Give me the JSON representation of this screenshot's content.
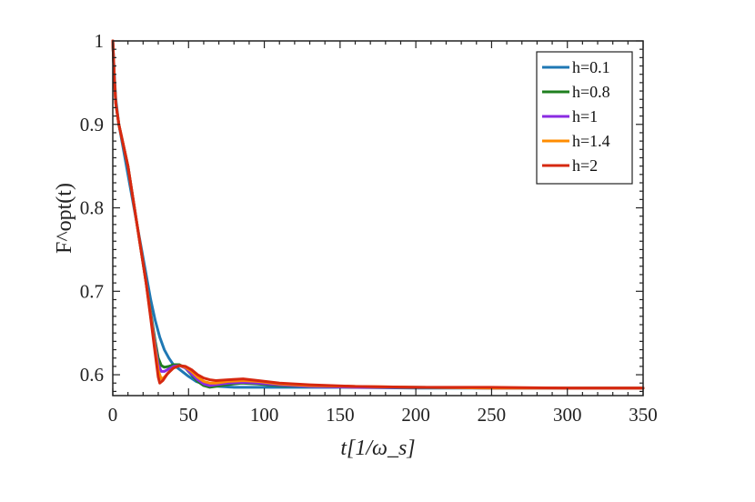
{
  "chart_data": {
    "type": "line",
    "xlabel": "t[1/ω_s]",
    "ylabel": "F^opt(t)",
    "xlim": [
      0,
      350
    ],
    "ylim": [
      0.575,
      1.0
    ],
    "xticks": [
      0,
      50,
      100,
      150,
      200,
      250,
      300,
      350
    ],
    "yticks": [
      0.6,
      0.7,
      0.8,
      0.9,
      1
    ],
    "ytick_labels": [
      "0.6",
      "0.7",
      "0.8",
      "0.9",
      "1"
    ],
    "grid": false,
    "legend_position": "top-right",
    "series": [
      {
        "name": "h=0.1",
        "color": "#1f78b4",
        "points": [
          [
            0,
            1.0
          ],
          [
            1,
            0.96
          ],
          [
            2,
            0.93
          ],
          [
            4,
            0.9
          ],
          [
            7,
            0.87
          ],
          [
            10,
            0.84
          ],
          [
            13,
            0.81
          ],
          [
            16,
            0.78
          ],
          [
            19,
            0.75
          ],
          [
            22,
            0.72
          ],
          [
            25,
            0.69
          ],
          [
            28,
            0.665
          ],
          [
            31,
            0.645
          ],
          [
            34,
            0.63
          ],
          [
            37,
            0.62
          ],
          [
            40,
            0.612
          ],
          [
            45,
            0.605
          ],
          [
            50,
            0.598
          ],
          [
            55,
            0.592
          ],
          [
            60,
            0.589
          ],
          [
            65,
            0.587
          ],
          [
            70,
            0.586
          ],
          [
            80,
            0.585
          ],
          [
            90,
            0.585
          ],
          [
            100,
            0.585
          ],
          [
            150,
            0.585
          ],
          [
            200,
            0.584
          ],
          [
            250,
            0.584
          ],
          [
            300,
            0.584
          ],
          [
            350,
            0.584
          ]
        ]
      },
      {
        "name": "h=0.8",
        "color": "#1f7f1f",
        "points": [
          [
            0,
            1.0
          ],
          [
            1,
            0.955
          ],
          [
            2,
            0.925
          ],
          [
            4,
            0.9
          ],
          [
            7,
            0.875
          ],
          [
            10,
            0.85
          ],
          [
            13,
            0.815
          ],
          [
            16,
            0.78
          ],
          [
            19,
            0.745
          ],
          [
            22,
            0.71
          ],
          [
            25,
            0.675
          ],
          [
            28,
            0.64
          ],
          [
            30,
            0.62
          ],
          [
            32,
            0.611
          ],
          [
            34,
            0.609
          ],
          [
            37,
            0.61
          ],
          [
            40,
            0.612
          ],
          [
            44,
            0.612
          ],
          [
            48,
            0.608
          ],
          [
            52,
            0.6
          ],
          [
            56,
            0.592
          ],
          [
            60,
            0.587
          ],
          [
            64,
            0.585
          ],
          [
            68,
            0.586
          ],
          [
            75,
            0.588
          ],
          [
            85,
            0.59
          ],
          [
            95,
            0.589
          ],
          [
            110,
            0.587
          ],
          [
            130,
            0.586
          ],
          [
            160,
            0.585
          ],
          [
            200,
            0.585
          ],
          [
            250,
            0.584
          ],
          [
            300,
            0.584
          ],
          [
            350,
            0.584
          ]
        ]
      },
      {
        "name": "h=1",
        "color": "#8a2be2",
        "points": [
          [
            0,
            1.0
          ],
          [
            1,
            0.955
          ],
          [
            2,
            0.925
          ],
          [
            4,
            0.9
          ],
          [
            7,
            0.875
          ],
          [
            10,
            0.85
          ],
          [
            13,
            0.815
          ],
          [
            16,
            0.78
          ],
          [
            19,
            0.745
          ],
          [
            22,
            0.71
          ],
          [
            25,
            0.672
          ],
          [
            28,
            0.635
          ],
          [
            30,
            0.612
          ],
          [
            32,
            0.604
          ],
          [
            34,
            0.604
          ],
          [
            37,
            0.607
          ],
          [
            40,
            0.61
          ],
          [
            44,
            0.611
          ],
          [
            48,
            0.608
          ],
          [
            52,
            0.601
          ],
          [
            56,
            0.594
          ],
          [
            60,
            0.589
          ],
          [
            64,
            0.587
          ],
          [
            68,
            0.588
          ],
          [
            76,
            0.59
          ],
          [
            86,
            0.591
          ],
          [
            96,
            0.59
          ],
          [
            110,
            0.588
          ],
          [
            130,
            0.586
          ],
          [
            160,
            0.585
          ],
          [
            200,
            0.585
          ],
          [
            250,
            0.584
          ],
          [
            300,
            0.584
          ],
          [
            350,
            0.584
          ]
        ]
      },
      {
        "name": "h=1.4",
        "color": "#ff8c00",
        "points": [
          [
            0,
            1.0
          ],
          [
            1,
            0.955
          ],
          [
            2,
            0.925
          ],
          [
            4,
            0.9
          ],
          [
            7,
            0.875
          ],
          [
            10,
            0.85
          ],
          [
            13,
            0.815
          ],
          [
            16,
            0.78
          ],
          [
            19,
            0.745
          ],
          [
            22,
            0.71
          ],
          [
            25,
            0.67
          ],
          [
            28,
            0.63
          ],
          [
            30,
            0.605
          ],
          [
            32,
            0.595
          ],
          [
            34,
            0.597
          ],
          [
            37,
            0.603
          ],
          [
            40,
            0.608
          ],
          [
            44,
            0.611
          ],
          [
            48,
            0.609
          ],
          [
            52,
            0.604
          ],
          [
            56,
            0.597
          ],
          [
            60,
            0.592
          ],
          [
            64,
            0.59
          ],
          [
            68,
            0.59
          ],
          [
            76,
            0.592
          ],
          [
            86,
            0.593
          ],
          [
            96,
            0.592
          ],
          [
            110,
            0.589
          ],
          [
            130,
            0.587
          ],
          [
            160,
            0.586
          ],
          [
            200,
            0.585
          ],
          [
            250,
            0.584
          ],
          [
            300,
            0.584
          ],
          [
            350,
            0.584
          ]
        ]
      },
      {
        "name": "h=2",
        "color": "#d62810",
        "points": [
          [
            0,
            1.0
          ],
          [
            1,
            0.955
          ],
          [
            2,
            0.925
          ],
          [
            4,
            0.9
          ],
          [
            7,
            0.875
          ],
          [
            10,
            0.85
          ],
          [
            13,
            0.815
          ],
          [
            16,
            0.78
          ],
          [
            19,
            0.745
          ],
          [
            22,
            0.71
          ],
          [
            25,
            0.668
          ],
          [
            28,
            0.625
          ],
          [
            30,
            0.597
          ],
          [
            31,
            0.59
          ],
          [
            33,
            0.593
          ],
          [
            36,
            0.601
          ],
          [
            40,
            0.608
          ],
          [
            44,
            0.611
          ],
          [
            48,
            0.61
          ],
          [
            52,
            0.606
          ],
          [
            56,
            0.6
          ],
          [
            60,
            0.596
          ],
          [
            64,
            0.594
          ],
          [
            68,
            0.593
          ],
          [
            76,
            0.594
          ],
          [
            86,
            0.595
          ],
          [
            96,
            0.593
          ],
          [
            110,
            0.59
          ],
          [
            130,
            0.588
          ],
          [
            160,
            0.586
          ],
          [
            200,
            0.585
          ],
          [
            250,
            0.585
          ],
          [
            300,
            0.584
          ],
          [
            350,
            0.584
          ]
        ]
      }
    ]
  }
}
